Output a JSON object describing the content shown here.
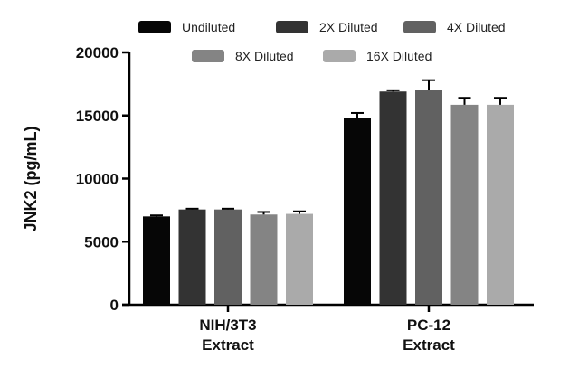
{
  "chart_data": {
    "type": "bar",
    "ylabel": "JNK2 (pg/mL)",
    "xlabel": "",
    "ylim": [
      0,
      20000
    ],
    "yticks": [
      0,
      5000,
      10000,
      15000,
      20000
    ],
    "categories": [
      [
        "NIH/3T3",
        "Extract"
      ],
      [
        "PC-12",
        "Extract"
      ]
    ],
    "series": [
      {
        "name": "Undiluted",
        "color": "#060606",
        "values": [
          7000,
          14800
        ],
        "errors": [
          80,
          400
        ]
      },
      {
        "name": "2X Diluted",
        "color": "#333333",
        "values": [
          7550,
          16900
        ],
        "errors": [
          60,
          100
        ]
      },
      {
        "name": "4X Diluted",
        "color": "#616161",
        "values": [
          7550,
          17000
        ],
        "errors": [
          60,
          800
        ]
      },
      {
        "name": "8X Diluted",
        "color": "#848484",
        "values": [
          7150,
          15850
        ],
        "errors": [
          200,
          550
        ]
      },
      {
        "name": "16X Diluted",
        "color": "#aaaaaa",
        "values": [
          7200,
          15850
        ],
        "errors": [
          200,
          550
        ]
      }
    ],
    "legend_position": "top",
    "grid": false
  }
}
